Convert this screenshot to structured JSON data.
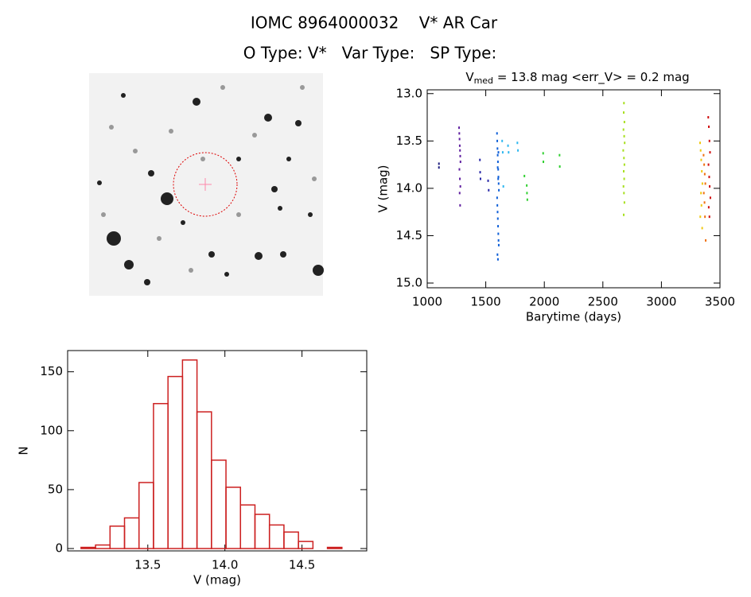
{
  "header": {
    "title": "IOMC 8964000032    V* AR Car",
    "subtitle": "O Type: V*   Var Type:   SP Type:"
  },
  "chart_data": [
    {
      "type": "scatter",
      "title": [
        "V",
        "med",
        " = 13.8 mag <err_V> = 0.2 mag"
      ],
      "x_label": "Barytime (days)",
      "y_label": "V (mag)",
      "xlim": [
        1000,
        3500
      ],
      "xticks": [
        1000,
        1500,
        2000,
        2500,
        3000,
        3500
      ],
      "ylim": [
        15.05,
        12.96
      ],
      "yticks": [
        {
          "value": 13,
          "label": "13.0"
        },
        {
          "value": 13.5,
          "label": "13.5"
        },
        {
          "value": 14,
          "label": "14.0"
        },
        {
          "value": 14.5,
          "label": "14.5"
        },
        {
          "value": 15,
          "label": "15.0"
        }
      ],
      "series": [
        {
          "color": "#202080",
          "x": [
            1100,
            1100
          ],
          "values": [
            13.74,
            13.78
          ]
        },
        {
          "color": "#6020a0",
          "x": [
            1272,
            1274,
            1276,
            1278,
            1280,
            1282,
            1284,
            1275,
            1279,
            1283,
            1277,
            1281
          ],
          "values": [
            13.36,
            13.42,
            13.48,
            13.55,
            13.6,
            13.66,
            13.72,
            13.8,
            13.9,
            13.98,
            14.05,
            14.18
          ]
        },
        {
          "color": "#2828a8",
          "x": [
            1450,
            1452,
            1455,
            1520,
            1525
          ],
          "values": [
            13.7,
            13.83,
            13.9,
            13.92,
            14.02
          ]
        },
        {
          "color": "#1060d8",
          "x": [
            1596,
            1598,
            1600,
            1602,
            1604,
            1606,
            1608,
            1610,
            1612,
            1597,
            1599,
            1601,
            1603,
            1605,
            1607,
            1609,
            1611,
            1600,
            1604,
            1608,
            1602,
            1606
          ],
          "values": [
            13.42,
            13.5,
            13.58,
            13.65,
            13.72,
            13.8,
            13.88,
            13.95,
            14.02,
            14.1,
            14.18,
            14.25,
            14.32,
            14.4,
            14.48,
            14.55,
            14.6,
            14.7,
            14.75,
            13.62,
            13.78,
            13.9
          ]
        },
        {
          "color": "#30b8f0",
          "x": [
            1640,
            1645,
            1690,
            1695,
            1770,
            1775,
            1650
          ],
          "values": [
            13.5,
            13.62,
            13.55,
            13.62,
            13.52,
            13.6,
            13.98
          ]
        },
        {
          "color": "#30d030",
          "x": [
            1830,
            1850,
            1852,
            1855,
            1990,
            1992,
            2130,
            2132
          ],
          "values": [
            13.87,
            13.97,
            14.05,
            14.12,
            13.63,
            13.72,
            13.65,
            13.77
          ]
        },
        {
          "color": "#a8e020",
          "x": [
            2680,
            2678,
            2684,
            2676,
            2682,
            2686,
            2674,
            2680,
            2684,
            2678,
            2682,
            2676,
            2680,
            2684,
            2678
          ],
          "values": [
            13.1,
            13.2,
            13.3,
            13.38,
            13.45,
            13.52,
            13.6,
            13.68,
            13.75,
            13.82,
            13.9,
            13.98,
            14.05,
            14.15,
            14.28
          ]
        },
        {
          "color": "#f0c810",
          "x": [
            3330,
            3335,
            3340,
            3345,
            3350,
            3338,
            3342,
            3332,
            3348
          ],
          "values": [
            13.52,
            13.6,
            13.7,
            13.82,
            13.95,
            14.05,
            14.18,
            14.3,
            14.42
          ]
        },
        {
          "color": "#f07010",
          "x": [
            3360,
            3365,
            3370,
            3375,
            3362,
            3368,
            3372,
            3378
          ],
          "values": [
            13.65,
            13.75,
            13.85,
            13.95,
            14.05,
            14.15,
            14.3,
            14.55
          ]
        },
        {
          "color": "#d01010",
          "x": [
            3400,
            3405,
            3410,
            3415,
            3402,
            3408,
            3412,
            3418,
            3404,
            3410
          ],
          "values": [
            13.25,
            13.35,
            13.5,
            13.62,
            13.75,
            13.88,
            13.98,
            14.1,
            14.2,
            14.3
          ]
        }
      ]
    },
    {
      "type": "histogram",
      "x_label": "V (mag)",
      "y_label": "N",
      "color": "#cc2020",
      "bins": [
        13.067,
        13.161,
        13.255,
        13.349,
        13.443,
        13.537,
        13.631,
        13.725,
        13.819,
        13.913,
        14.007,
        14.101,
        14.195,
        14.289,
        14.383,
        14.477,
        14.571,
        14.665,
        14.759
      ],
      "values": [
        1,
        3,
        19,
        26,
        56,
        123,
        146,
        160,
        116,
        75,
        52,
        37,
        29,
        20,
        14,
        6,
        0,
        1
      ],
      "xlim": [
        12.98,
        14.92
      ],
      "xticks": [
        {
          "value": 13.5,
          "label": "13.5"
        },
        {
          "value": 14,
          "label": "14.0"
        },
        {
          "value": 14.5,
          "label": "14.5"
        }
      ],
      "ylim": [
        -2,
        168
      ],
      "yticks": [
        0,
        50,
        100,
        150
      ]
    }
  ]
}
